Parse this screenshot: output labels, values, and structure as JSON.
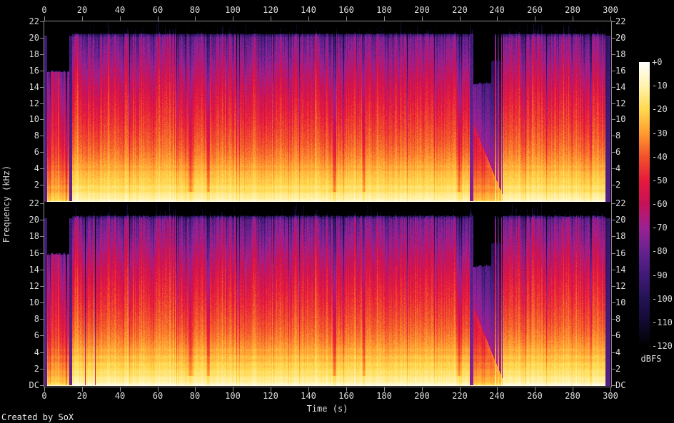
{
  "footer": {
    "credit": "Created by SoX"
  },
  "axes": {
    "x": {
      "label": "Time (s)",
      "tick_labels": [
        "0",
        "20",
        "40",
        "60",
        "80",
        "100",
        "120",
        "140",
        "160",
        "180",
        "200",
        "220",
        "240",
        "260",
        "280",
        "300"
      ]
    },
    "y": {
      "label": "Frequency (kHz)",
      "upper_tick_labels": [
        "22",
        "20",
        "18",
        "16",
        "14",
        "12",
        "10",
        "8",
        "6",
        "4",
        "2"
      ],
      "lower_tick_labels": [
        "22",
        "20",
        "18",
        "16",
        "14",
        "12",
        "10",
        "8",
        "6",
        "4",
        "2",
        "DC"
      ]
    },
    "colorbar": {
      "unit": "dBFS",
      "tick_labels": [
        "+0",
        "-10",
        "-20",
        "-30",
        "-40",
        "-50",
        "-60",
        "-70",
        "-80",
        "-90",
        "-100",
        "-110",
        "-120"
      ]
    }
  },
  "chart_data": {
    "type": "heatmap",
    "subtype": "audio_spectrogram",
    "channels": 2,
    "x_range_s": [
      0,
      300
    ],
    "x_tick_step_s": 20,
    "y_range_khz": [
      0,
      22
    ],
    "y_tick_step_khz": 2,
    "z_range_dbfs": [
      -120,
      0
    ],
    "z_tick_step_db": 10,
    "grid": false,
    "legend_position": "right",
    "palette_stops": [
      {
        "dbfs": 0,
        "color": "#ffffff"
      },
      {
        "dbfs": -10,
        "color": "#fff3ae"
      },
      {
        "dbfs": -20,
        "color": "#ffd94e"
      },
      {
        "dbfs": -30,
        "color": "#ff9c31"
      },
      {
        "dbfs": -40,
        "color": "#f2522a"
      },
      {
        "dbfs": -50,
        "color": "#e61a3c"
      },
      {
        "dbfs": -60,
        "color": "#c61158"
      },
      {
        "dbfs": -70,
        "color": "#9c2193"
      },
      {
        "dbfs": -80,
        "color": "#662290"
      },
      {
        "dbfs": -90,
        "color": "#401a78"
      },
      {
        "dbfs": -100,
        "color": "#241254"
      },
      {
        "dbfs": -110,
        "color": "#120a30"
      },
      {
        "dbfs": -120,
        "color": "#000000"
      }
    ],
    "freq_profile_dbfs": [
      [
        0,
        -4
      ],
      [
        0.25,
        -8
      ],
      [
        0.8,
        -13
      ],
      [
        1.5,
        -17
      ],
      [
        2.5,
        -21
      ],
      [
        3.5,
        -25
      ],
      [
        4.5,
        -29
      ],
      [
        5.5,
        -33
      ],
      [
        7,
        -38
      ],
      [
        8.5,
        -42
      ],
      [
        10,
        -46
      ],
      [
        12,
        -51
      ],
      [
        14,
        -57
      ],
      [
        16,
        -64
      ],
      [
        17.5,
        -70
      ],
      [
        19,
        -75
      ],
      [
        20,
        -79
      ],
      [
        20.4,
        -93
      ],
      [
        20.6,
        -122
      ],
      [
        22,
        -122
      ]
    ],
    "lowpass_cutoff_khz": 20.4,
    "sections": [
      {
        "t": [
          0,
          1.6
        ],
        "type": "silence",
        "level_dbfs": -84
      },
      {
        "t": [
          1.6,
          13.2
        ],
        "type": "intro",
        "level_offset_db": -13,
        "bandwidth_khz": 15.8
      },
      {
        "t": [
          13.2,
          14.9
        ],
        "type": "pause",
        "level_dbfs": -79
      },
      {
        "t": [
          14.9,
          225.5
        ],
        "type": "loud_music"
      },
      {
        "t": [
          225.5,
          243
        ],
        "type": "breakdown",
        "pre_pause_until_s": 227.2,
        "pre_pause_level_dbfs": -72,
        "decay_from_khz": 9.6,
        "decay_rate_khz_per_s": 0.56,
        "quiet_level_dbfs": -68,
        "reduced_bandwidth_khz": 14.3,
        "bandwidth_restore_s": 237,
        "restored_bandwidth_khz": 17,
        "hit_times_s": [
          239.2,
          240.6,
          242.3
        ],
        "hit_half_width_s": 0.35
      },
      {
        "t": [
          243,
          297.2
        ],
        "type": "loud_music"
      },
      {
        "t": [
          297.2,
          300
        ],
        "type": "silence",
        "level_dbfs": -84
      }
    ],
    "dip_events_s": [
      [
        77.6,
        2.2
      ],
      [
        87,
        1.2
      ],
      [
        153.8,
        1.6
      ],
      [
        169.5,
        1.2
      ],
      [
        219.8,
        1.5
      ]
    ],
    "right_channel_dropout_lines_s": [
      21.7,
      27.0
    ],
    "dropout_half_width_s": 0.17,
    "dropout_depth_db": 42,
    "hf_streak_band": {
      "t": [
        85,
        222
      ],
      "f_khz": [
        6.3,
        10
      ],
      "boost_db": 9
    },
    "dc_line_dbfs": -7
  }
}
